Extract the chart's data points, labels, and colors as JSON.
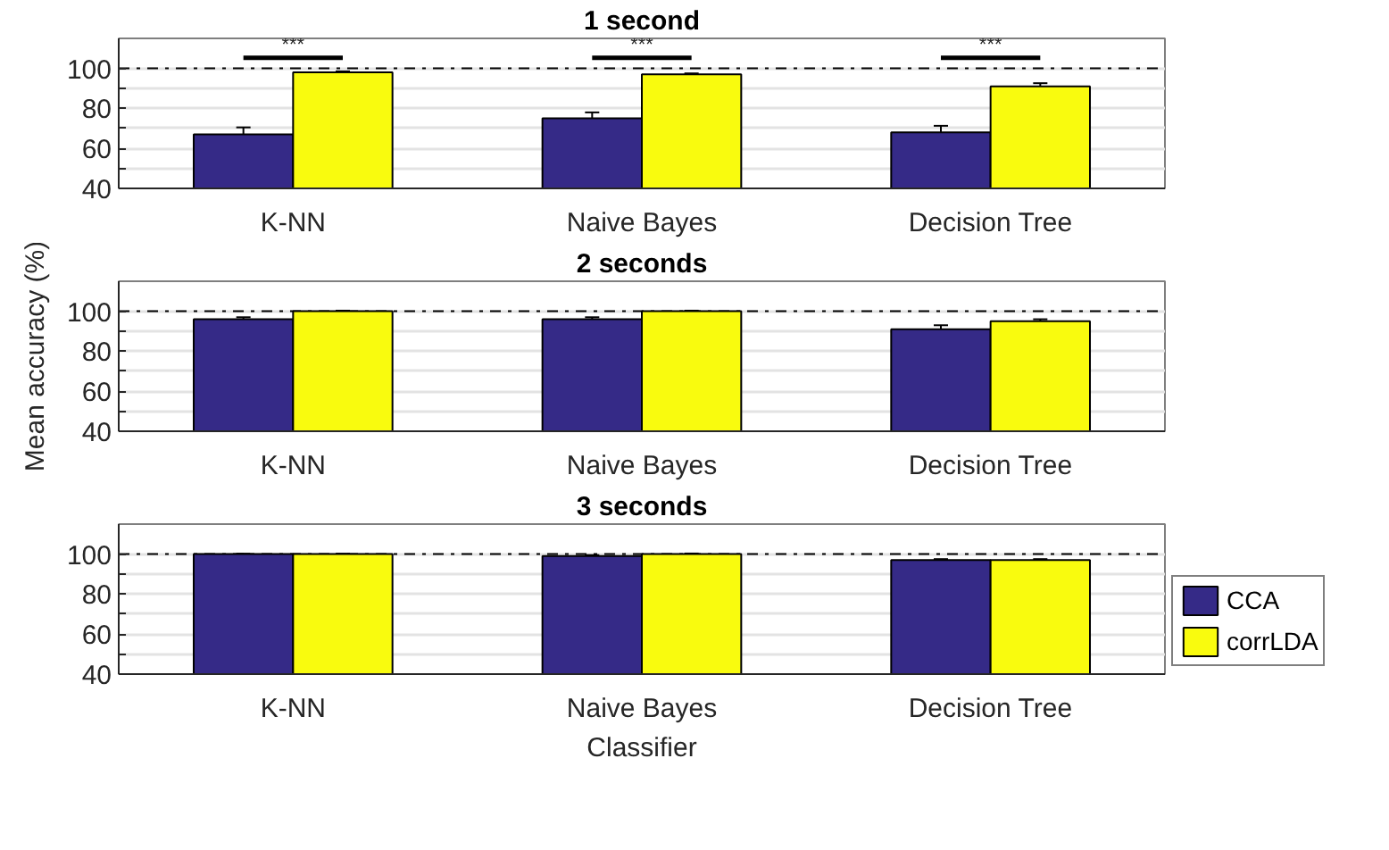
{
  "chart_data": [
    {
      "type": "bar",
      "title": "1 second",
      "categories": [
        "K-NN",
        "Naive Bayes",
        "Decision Tree"
      ],
      "series": [
        {
          "color": "#352a87",
          "values": [
            67,
            75,
            68
          ],
          "errors": [
            3.5,
            3,
            3.3
          ]
        },
        {
          "color": "#f9fb0e",
          "values": [
            98,
            97,
            91
          ],
          "errors": [
            0.5,
            0.5,
            1.6
          ]
        }
      ],
      "ylim": [
        40,
        115
      ],
      "yticks": [
        40,
        {
          "value": 50,
          "label": null
        },
        60,
        {
          "value": 70,
          "label": null
        },
        80,
        {
          "value": 90,
          "label": null
        },
        100
      ],
      "grid": "y",
      "ref_lines": [
        {
          "axis": "y",
          "value": 100,
          "color": "#000000",
          "line_style": "dashdot"
        }
      ],
      "annotations": [
        "***",
        "***",
        "***"
      ]
    },
    {
      "type": "bar",
      "title": "2 seconds",
      "ylabel": "Mean accuracy (%)",
      "categories": [
        "K-NN",
        "Naive Bayes",
        "Decision Tree"
      ],
      "series": [
        {
          "color": "#352a87",
          "values": [
            96,
            96,
            91
          ],
          "errors": [
            1,
            1,
            2
          ]
        },
        {
          "color": "#f9fb0e",
          "values": [
            100,
            100,
            95
          ],
          "errors": [
            0.3,
            0.3,
            1
          ]
        }
      ],
      "ylim": [
        40,
        115
      ],
      "yticks": [
        40,
        {
          "value": 50,
          "label": null
        },
        60,
        {
          "value": 70,
          "label": null
        },
        80,
        {
          "value": 90,
          "label": null
        },
        100
      ],
      "grid": "y",
      "ref_lines": [
        {
          "axis": "y",
          "value": 100,
          "color": "#000000",
          "line_style": "dashdot"
        }
      ]
    },
    {
      "type": "bar",
      "title": "3 seconds",
      "xlabel": "Classifier",
      "categories": [
        "K-NN",
        "Naive Bayes",
        "Decision Tree"
      ],
      "series": [
        {
          "name": "CCA",
          "color": "#352a87",
          "values": [
            100,
            99,
            97
          ],
          "errors": [
            0.2,
            0.5,
            0.5
          ]
        },
        {
          "name": "corrLDA",
          "color": "#f9fb0e",
          "values": [
            100,
            100,
            97
          ],
          "errors": [
            0.2,
            0.3,
            0.5
          ]
        }
      ],
      "ylim": [
        40,
        115
      ],
      "yticks": [
        40,
        {
          "value": 50,
          "label": null
        },
        60,
        {
          "value": 70,
          "label": null
        },
        80,
        {
          "value": 90,
          "label": null
        },
        100
      ],
      "grid": "y",
      "ref_lines": [
        {
          "axis": "y",
          "value": 100,
          "color": "#000000",
          "line_style": "dashdot"
        }
      ],
      "legend": "bottom right"
    }
  ]
}
